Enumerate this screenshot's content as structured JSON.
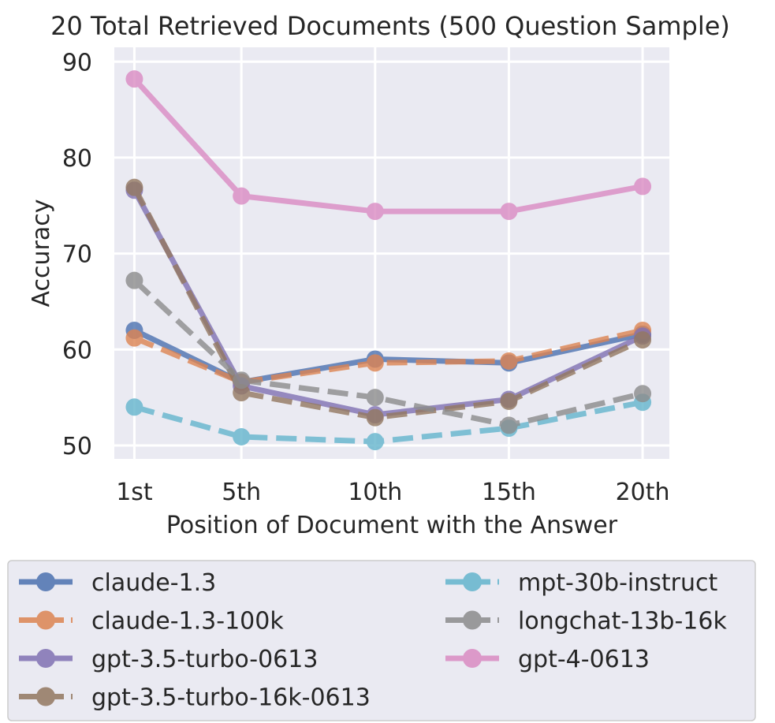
{
  "chart_data": {
    "type": "line",
    "title": "20 Total Retrieved Documents (500 Question Sample)",
    "xlabel": "Position of Document with the Answer",
    "ylabel": "Accuracy",
    "x": [
      1,
      5,
      10,
      15,
      20
    ],
    "categories": [
      "1st",
      "5th",
      "10th",
      "15th",
      "20th"
    ],
    "ylim": [
      48.6,
      91.5
    ],
    "yticks": [
      50,
      60,
      70,
      80,
      90
    ],
    "grid": true,
    "legend_position": "bottom",
    "series": [
      {
        "name": "claude-1.3",
        "values": [
          62.0,
          56.6,
          59.0,
          58.6,
          61.6
        ],
        "color": "#4c72b0",
        "dash": "solid"
      },
      {
        "name": "claude-1.3-100k",
        "values": [
          61.2,
          56.6,
          58.6,
          58.8,
          62.0
        ],
        "color": "#dd8452",
        "dash": "dashed"
      },
      {
        "name": "gpt-3.5-turbo-0613",
        "values": [
          76.6,
          56.2,
          53.2,
          54.8,
          61.4
        ],
        "color": "#8172b3",
        "dash": "solid"
      },
      {
        "name": "gpt-3.5-turbo-16k-0613",
        "values": [
          76.9,
          55.5,
          52.9,
          54.6,
          61.0
        ],
        "color": "#937860",
        "dash": "dashed"
      },
      {
        "name": "mpt-30b-instruct",
        "values": [
          54.0,
          50.9,
          50.4,
          51.8,
          54.5
        ],
        "color": "#64b5cd",
        "dash": "dashed"
      },
      {
        "name": "longchat-13b-16k",
        "values": [
          67.2,
          56.8,
          55.0,
          52.1,
          55.4
        ],
        "color": "#8c8c8c",
        "dash": "dashed"
      },
      {
        "name": "gpt-4-0613",
        "values": [
          88.2,
          76.0,
          74.4,
          74.4,
          77.0
        ],
        "color": "#da8bc3",
        "dash": "solid"
      }
    ]
  }
}
